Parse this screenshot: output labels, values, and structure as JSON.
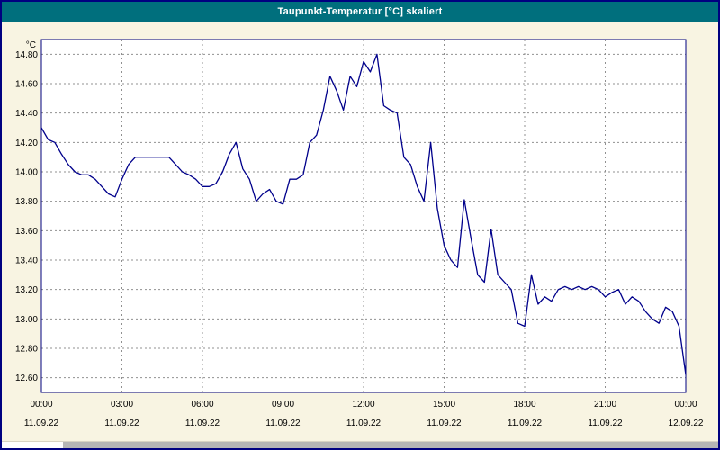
{
  "title": "Taupunkt-Temperatur [°C] skaliert",
  "colors": {
    "titlebar": "#006f7d",
    "window_background": "#f8f4e2",
    "window_border": "#000080"
  },
  "chart_data": {
    "type": "line",
    "title": "Taupunkt-Temperatur [°C] skaliert",
    "xlabel": "",
    "ylabel": "°C",
    "ylim": [
      12.5,
      14.9
    ],
    "grid": "dashed",
    "grid_color": "#909090",
    "frame_color": "#000080",
    "yticks": [
      "14.80",
      "14.60",
      "14.40",
      "14.20",
      "14.00",
      "13.80",
      "13.60",
      "13.40",
      "13.20",
      "13.00",
      "12.80",
      "12.60"
    ],
    "x_ticks": [
      {
        "time": "00:00",
        "date": "11.09.22"
      },
      {
        "time": "03:00",
        "date": "11.09.22"
      },
      {
        "time": "06:00",
        "date": "11.09.22"
      },
      {
        "time": "09:00",
        "date": "11.09.22"
      },
      {
        "time": "12:00",
        "date": "11.09.22"
      },
      {
        "time": "15:00",
        "date": "11.09.22"
      },
      {
        "time": "18:00",
        "date": "11.09.22"
      },
      {
        "time": "21:00",
        "date": "11.09.22"
      },
      {
        "time": "00:00",
        "date": "12.09.22"
      }
    ],
    "x_step_minutes": 15,
    "series": [
      {
        "name": "Taupunkt-Temperatur",
        "color": "#00008b",
        "values": [
          14.3,
          14.22,
          14.2,
          14.12,
          14.05,
          14.0,
          13.98,
          13.98,
          13.95,
          13.9,
          13.85,
          13.83,
          13.95,
          14.05,
          14.1,
          14.1,
          14.1,
          14.1,
          14.1,
          14.1,
          14.05,
          14.0,
          13.98,
          13.95,
          13.9,
          13.9,
          13.92,
          14.0,
          14.12,
          14.2,
          14.02,
          13.95,
          13.8,
          13.85,
          13.88,
          13.8,
          13.78,
          13.95,
          13.95,
          13.98,
          14.2,
          14.25,
          14.42,
          14.65,
          14.55,
          14.42,
          14.65,
          14.58,
          14.75,
          14.68,
          14.8,
          14.45,
          14.42,
          14.4,
          14.1,
          14.05,
          13.9,
          13.8,
          14.2,
          13.75,
          13.5,
          13.4,
          13.35,
          13.81,
          13.55,
          13.3,
          13.25,
          13.61,
          13.3,
          13.25,
          13.2,
          12.97,
          12.95,
          13.3,
          13.1,
          13.15,
          13.12,
          13.2,
          13.22,
          13.2,
          13.22,
          13.2,
          13.22,
          13.2,
          13.15,
          13.18,
          13.2,
          13.1,
          13.15,
          13.12,
          13.05,
          13.0,
          12.97,
          13.08,
          13.05,
          12.95,
          12.62
        ]
      }
    ]
  }
}
